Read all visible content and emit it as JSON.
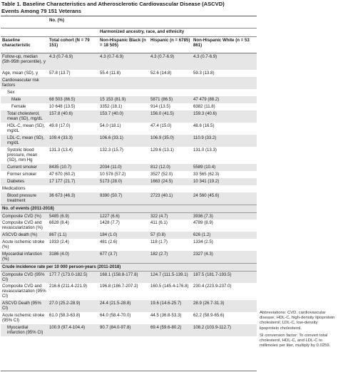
{
  "table": {
    "title_line1": "Table 1. Baseline Characteristics and Atherosclerotic Cardiovascular Disease (ASCVD)",
    "title_line2": "Events Among 79 151 Veterans",
    "no_pct": "No. (%)",
    "harmonized": "Harmonized ancestry, race, and ethnicity",
    "col_baseline": "Baseline characteristic",
    "col_total": "Total cohort (N = 79 151)",
    "col_black": "Non-Hispanic Black (n = 18 505)",
    "col_hispanic": "Hispanic (n = 6785)",
    "col_white": "Non-Hispanic White (n = 53 861)",
    "sections": [
      {
        "header": "",
        "rows": [
          {
            "label": "Follow-up, median (5th-95th percentile), y",
            "indent": 0,
            "rh": 3,
            "vals": [
              "4.3 (0.7-6.9)",
              "4.3 (0.7-6.9)",
              "4.3 (0.7-6.9)",
              "4.3 (0.7-6.9)"
            ]
          },
          {
            "label": "Age, mean (SD), y",
            "indent": 0,
            "rh": 1,
            "vals": [
              "57.8 (13.7)",
              "55.4 (11.8)",
              "52.6 (14.8)",
              "59.3 (13.8)"
            ]
          },
          {
            "label": "Cardiovascular risk factors",
            "indent": 0,
            "rh": 2,
            "vals": [
              "",
              "",
              "",
              ""
            ]
          },
          {
            "label": "Sex",
            "indent": 1,
            "rh": 1,
            "vals": [
              "",
              "",
              "",
              ""
            ]
          },
          {
            "label": "Male",
            "indent": 2,
            "rh": 1,
            "vals": [
              "68 503 (86.5)",
              "15 153 (81.9)",
              "5871 (86.5)",
              "47 479 (88.2)"
            ]
          },
          {
            "label": "Female",
            "indent": 2,
            "rh": 1,
            "vals": [
              "10 648 (13.5)",
              "3352 (18.1)",
              "914 (13.5)",
              "6382 (11.8)"
            ]
          },
          {
            "label": "Total cholesterol, mean (SD), mg/dL",
            "indent": 1,
            "rh": 2,
            "vals": [
              "157.8 (40.6)",
              "153.7 (40.0)",
              "156.0 (41.5)",
              "159.3 (40.6)"
            ]
          },
          {
            "label": "HDL-C, mean (SD), mg/dL",
            "indent": 1,
            "rh": 2,
            "vals": [
              "49.8 (17.0)",
              "54.0 (18.1)",
              "47.4 (15.0)",
              "48.6 (16.5)"
            ]
          },
          {
            "label": "LDL-C, mean (SD), mg/dL",
            "indent": 1,
            "rh": 2,
            "vals": [
              "109.4 (33.3)",
              "106.6 (33.1)",
              "106.9 (35.0)",
              "110.9 (33.2)"
            ]
          },
          {
            "label": "Systolic blood pressure, mean (SD), mm Hg",
            "indent": 1,
            "rh": 3,
            "vals": [
              "131.3 (13.4)",
              "132.3 (15.7)",
              "129.6 (13.1)",
              "131.0 (13.3)"
            ]
          },
          {
            "label": "Current smoker",
            "indent": 1,
            "rh": 1,
            "vals": [
              "8435 (10.7)",
              "2034 (11.0)",
              "812 (12.0)",
              "5589 (10.4)"
            ]
          },
          {
            "label": "Former smoker",
            "indent": 1,
            "rh": 1,
            "vals": [
              "47 670 (60.2)",
              "10 578 (57.2)",
              "3527 (52.0)",
              "33 565 (62.3)"
            ]
          },
          {
            "label": "Diabetes",
            "indent": 1,
            "rh": 1,
            "vals": [
              "17 177 (21.7)",
              "5173 (28.0)",
              "1663 (24.5)",
              "10 341 (19.2)"
            ]
          },
          {
            "label": "Medications",
            "indent": 0,
            "rh": 1,
            "vals": [
              "",
              "",
              "",
              ""
            ]
          },
          {
            "label": "Blood pressure treatment",
            "indent": 1,
            "rh": 2,
            "vals": [
              "36 673 (46.3)",
              "9390 (50.7)",
              "2723 (40.1)",
              "24 560 (45.6)"
            ]
          }
        ]
      },
      {
        "header": "No. of events (2011-2018)",
        "rows": [
          {
            "label": "Composite CVD (%)",
            "indent": 0,
            "rh": 1,
            "vals": [
              "5485 (6.9)",
              "1227 (6.6)",
              "322 (4.7)",
              "3936 (7.3)"
            ]
          },
          {
            "label": "Composite CVD and revascularization (%)",
            "indent": 0,
            "rh": 2,
            "vals": [
              "6628 (8.4)",
              "1428 (7.7)",
              "411 (6.1)",
              "4789 (8.9)"
            ]
          },
          {
            "label": "ASCVD death (%)",
            "indent": 0,
            "rh": 1,
            "vals": [
              "867 (1.1)",
              "184 (1.0)",
              "57 (0.8)",
              "626 (1.2)"
            ]
          },
          {
            "label": "Acute ischemic stroke (%)",
            "indent": 0,
            "rh": 2,
            "vals": [
              "1933 (2.4)",
              "481 (2.6)",
              "118 (1.7)",
              "1334 (2.5)"
            ]
          },
          {
            "label": "Myocardial infarction (%)",
            "indent": 0,
            "rh": 2,
            "vals": [
              "3186 (4.0)",
              "677 (3.7)",
              "182 (2.7)",
              "2327 (4.3)"
            ]
          }
        ]
      },
      {
        "header": "Crude incidence rate per 10 000 person-years (2011-2018)",
        "rows": [
          {
            "label": "Composite CVD (95% CI)",
            "indent": 0,
            "rh": 2,
            "vals": [
              "177.7 (173.0-182.5)",
              "168.1 (158.8-177.8)",
              "124.7 (111.5-139.1)",
              "187.5 (181.7-193.5)"
            ]
          },
          {
            "label": "Composite CVD and revascularization (95% CI)",
            "indent": 0,
            "rh": 3,
            "vals": [
              "216.6 (211.4-221.9)",
              "196.8 (186.7-207.2)",
              "160.5 (145.4-176.8)",
              "230.4 (223.9-237.0)"
            ]
          },
          {
            "label": "ASCVD Death (95% CI)",
            "indent": 0,
            "rh": 2,
            "vals": [
              "27.0 (25.2-28.9)",
              "24.4 (21.5-28.8)",
              "19.6 (14.6-25.7)",
              "28.9 (26.7-31.3)"
            ]
          },
          {
            "label": "Acute ischemic stroke (95% CI)",
            "indent": 0,
            "rh": 2,
            "vals": [
              "61.0 (58.3-63.8)",
              "64.0 (58.4-70.0)",
              "44.5 (36.8-53.3)",
              "62.2 (58.9-65.6)"
            ]
          },
          {
            "label": "Myocardial infarction (95% CI)",
            "indent": 1,
            "rh": 2,
            "vals": [
              "100.9 (97.4-104.4)",
              "90.7 (84.0-97.8)",
              "69.4 (59.6-80.2)",
              "108.2 (103.9-112.7)"
            ]
          }
        ]
      }
    ]
  },
  "notes": {
    "abbreviations": "Abbreviations: CVD, cardiovascular disease; HDL-C, high-density lipoprotein cholesterol; LDL-C, low-density lipoprotein cholesterol.",
    "si": "SI conversion factor: To convert total cholesterol, HDL-C, and LDL-C to millimoles per liter, multiply by 0.0259."
  }
}
